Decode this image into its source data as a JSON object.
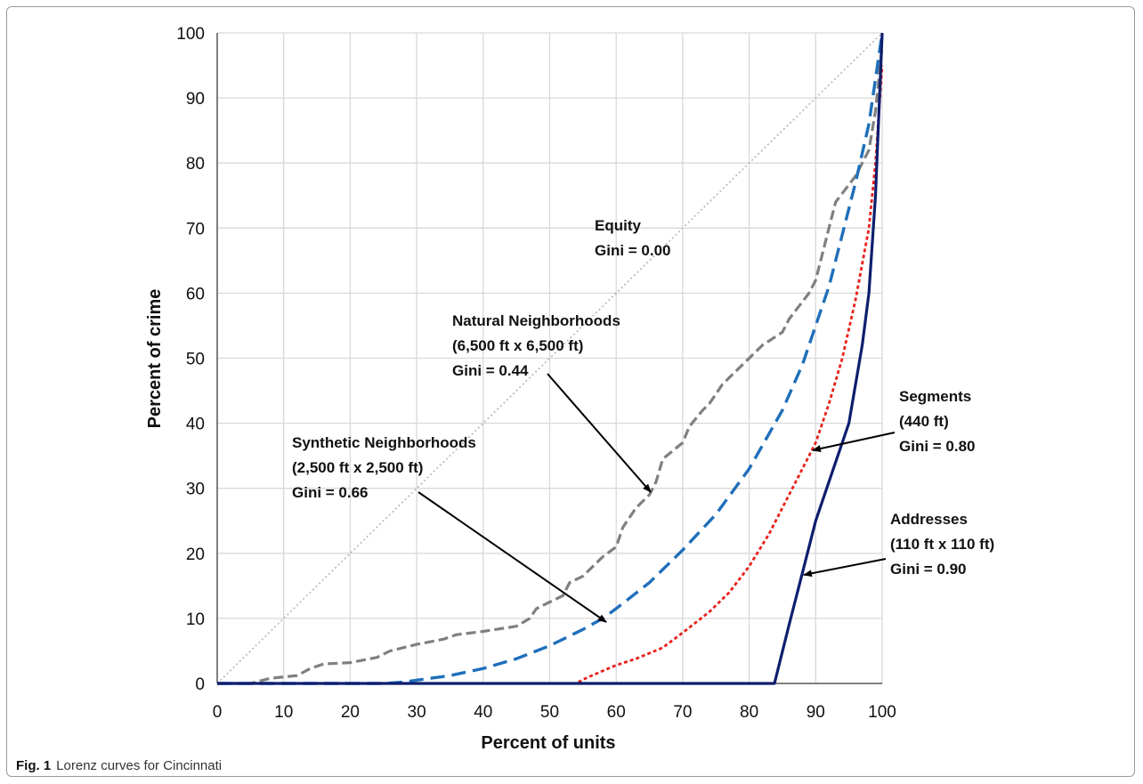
{
  "caption": {
    "label": "Fig. 1",
    "text": "Lorenz curves for Cincinnati"
  },
  "chart_data": {
    "type": "line",
    "xlabel": "Percent of units",
    "ylabel": "Percent of crime",
    "xlim": [
      0,
      100
    ],
    "ylim": [
      0,
      100
    ],
    "xticks": [
      0,
      10,
      20,
      30,
      40,
      50,
      60,
      70,
      80,
      90,
      100
    ],
    "yticks": [
      0,
      10,
      20,
      30,
      40,
      50,
      60,
      70,
      80,
      90,
      100
    ],
    "grid": true,
    "series": [
      {
        "id": "equity",
        "color": "#b5b5b5",
        "style": "dotted",
        "width": 1.6,
        "x": [
          0,
          100
        ],
        "y": [
          0,
          100
        ]
      },
      {
        "id": "natural",
        "color": "#808080",
        "style": "dashed",
        "width": 3.2,
        "x": [
          0,
          5,
          8,
          12,
          14,
          16,
          20,
          24,
          26,
          30,
          34,
          36,
          40,
          45,
          47,
          48,
          50,
          52,
          53,
          55,
          57,
          58,
          60,
          61,
          62,
          63,
          65,
          66,
          67,
          70,
          71,
          73,
          74,
          76,
          80,
          82,
          85,
          86,
          89,
          90,
          91,
          92,
          93,
          96,
          98,
          99,
          100
        ],
        "y": [
          0,
          0,
          0.8,
          1.2,
          2.3,
          3.0,
          3.2,
          4.0,
          5.0,
          6.0,
          6.8,
          7.5,
          8.0,
          8.8,
          10,
          11.5,
          12.5,
          13.5,
          15.5,
          16.5,
          18.5,
          19.5,
          21,
          24,
          25.5,
          27,
          29,
          31,
          34.5,
          37,
          39.5,
          42,
          43,
          46,
          50,
          52,
          54,
          56,
          60,
          62,
          66,
          70,
          74,
          78,
          82,
          88,
          98
        ]
      },
      {
        "id": "synthetic",
        "color": "#1f6fba",
        "style": "dashed",
        "width": 3.4,
        "x": [
          0,
          25,
          28,
          30,
          35,
          40,
          45,
          50,
          55,
          58,
          60,
          65,
          70,
          75,
          80,
          85,
          88,
          90,
          92,
          94,
          96,
          98,
          100
        ],
        "y": [
          0,
          0,
          0.2,
          0.5,
          1.2,
          2.3,
          3.8,
          5.8,
          8.3,
          10,
          11.5,
          15.5,
          20.5,
          26,
          33,
          42,
          49,
          55,
          61,
          69,
          77,
          86,
          100
        ]
      },
      {
        "id": "segments",
        "color": "#e8211b",
        "style": "dotted",
        "width": 2.8,
        "x": [
          0,
          54,
          55,
          57,
          60,
          63,
          67,
          70,
          74,
          77,
          80,
          83,
          86,
          88,
          90,
          92,
          94,
          96,
          98,
          99,
          100
        ],
        "y": [
          0,
          0,
          0.6,
          1.5,
          2.8,
          3.8,
          5.5,
          7.8,
          11,
          14,
          18,
          23,
          29,
          33,
          37,
          43,
          50,
          59,
          70,
          80,
          95
        ]
      },
      {
        "id": "addresses",
        "color": "#0e1e6e",
        "style": "solid",
        "width": 3.2,
        "x": [
          0,
          83.8,
          86,
          88,
          90,
          92,
          95,
          97,
          98,
          99,
          100
        ],
        "y": [
          0,
          0,
          9,
          17,
          25,
          31,
          40,
          52,
          60,
          75,
          100
        ]
      }
    ],
    "annotations": [
      {
        "id": "equity",
        "lines": [
          "Equity",
          "Gini = 0.00"
        ],
        "arrow": false
      },
      {
        "id": "natural",
        "lines": [
          "Natural Neighborhoods",
          "(6,500 ft x 6,500 ft)",
          "Gini = 0.44"
        ],
        "arrow": true
      },
      {
        "id": "synthetic",
        "lines": [
          "Synthetic Neighborhoods",
          "(2,500 ft x 2,500 ft)",
          "Gini = 0.66"
        ],
        "arrow": true
      },
      {
        "id": "segments",
        "lines": [
          "Segments",
          "(440 ft)",
          "Gini = 0.80"
        ],
        "arrow": true
      },
      {
        "id": "addresses",
        "lines": [
          "Addresses",
          "(110 ft x 110 ft)",
          "Gini = 0.90"
        ],
        "arrow": true
      }
    ]
  }
}
